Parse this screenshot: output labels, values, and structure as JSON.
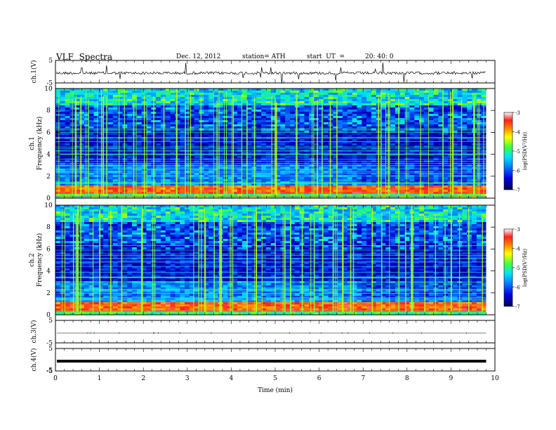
{
  "header": {
    "title": "VLF  Spectra",
    "date": "Dec. 12, 2012",
    "station": "station= ATH",
    "start_label": "start  UT  =",
    "start_time": "20: 40: 0"
  },
  "chart_data": [
    {
      "type": "line",
      "panel": "ch1-waveform",
      "ylabel": "ch.1(V)",
      "ylim": [
        -5,
        5
      ],
      "yticks": [
        "5",
        "-5"
      ],
      "xlim": [
        0,
        10
      ],
      "series": [
        {
          "values_note": "",
          "x": [
            0,
            0.5,
            1,
            1.5,
            2,
            2.5,
            3,
            3.5,
            4,
            4.5,
            5,
            5.5,
            6,
            6.5,
            7,
            7.5,
            8,
            8.5,
            9,
            9.5,
            9.8
          ],
          "y": [
            -0.2,
            0.1,
            -0.3,
            0.0,
            -0.2,
            0.2,
            -0.1,
            0.0,
            -0.2,
            0.1,
            -0.1,
            0.0,
            -0.2,
            0.1,
            0.0,
            -0.1,
            0.1,
            -0.2,
            0.0,
            0.1,
            -0.1
          ]
        }
      ]
    },
    {
      "type": "heatmap",
      "panel": "ch1-spectrogram",
      "ylabel": "ch.1\nFrequency  (kHz)",
      "ylabel_ch": "ch.1",
      "ylabel_freq": "Frequency  (kHz)",
      "ylim": [
        0,
        10
      ],
      "yticks": [
        "0",
        "2",
        "4",
        "6",
        "8",
        "10"
      ],
      "xlim": [
        0,
        9.8
      ],
      "colorbar": {
        "label": "log(PSD(V²/Hz)",
        "range": [
          -7,
          -3
        ],
        "ticks": [
          "-3",
          "-4",
          "-5",
          "-6",
          "-7"
        ]
      }
    },
    {
      "type": "heatmap",
      "panel": "ch2-spectrogram",
      "ylabel_ch": "ch.2",
      "ylabel_freq": "Frequency  (kHz)",
      "ylim": [
        0,
        10
      ],
      "yticks": [
        "0",
        "2",
        "4",
        "6",
        "8",
        "10"
      ],
      "xlim": [
        0,
        9.8
      ],
      "colorbar": {
        "label": "log(PSD(V²/Hz)",
        "range": [
          -7,
          -3
        ],
        "ticks": [
          "-3",
          "-4",
          "-5",
          "-6",
          "-7"
        ]
      }
    },
    {
      "type": "line",
      "panel": "ch3-waveform",
      "ylabel": "ch.3(V)",
      "ylim": [
        -5,
        5
      ],
      "yticks": [
        "5",
        "-5"
      ],
      "series": [
        {
          "x": [
            0,
            9.8
          ],
          "y": [
            0,
            0
          ]
        }
      ]
    },
    {
      "type": "line",
      "panel": "ch4-waveform",
      "ylabel": "ch.4(V)",
      "ylim": [
        -5,
        5
      ],
      "yticks": [
        "5",
        "-5",
        "-5"
      ],
      "series": [
        {
          "x": [
            0,
            9.8
          ],
          "y": [
            0,
            0
          ]
        }
      ]
    }
  ],
  "xaxis": {
    "label": "Time  (min)",
    "ticks": [
      "0",
      "1",
      "2",
      "3",
      "4",
      "5",
      "6",
      "7",
      "8",
      "9",
      "10"
    ],
    "range": [
      0,
      10
    ]
  },
  "colors": {
    "deep": "#000033",
    "blue": "#0000c8",
    "cyan": "#00c8ff",
    "green": "#40ff40",
    "yellow": "#ffff00",
    "red": "#ff2020"
  }
}
